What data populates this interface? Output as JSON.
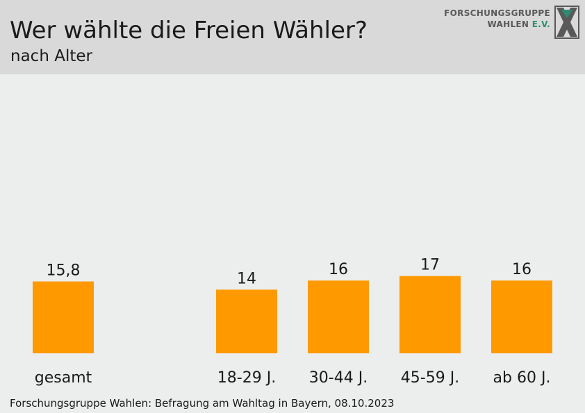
{
  "header": {
    "title": "Wer wählte die Freien Wähler?",
    "subtitle": "nach Alter"
  },
  "logo": {
    "line1": "FORSCHUNGSGRUPPE",
    "line2a": "WAHLEN",
    "line2b": "E.V."
  },
  "footer": {
    "source": "Forschungsgruppe Wahlen: Befragung am Wahltag in Bayern, 08.10.2023"
  },
  "colors": {
    "bar": "#ff9900",
    "header_bg": "#d9d9d9",
    "page_bg": "#ebeeed",
    "logo_accent": "#2e8b72"
  },
  "chart_data": {
    "type": "bar",
    "title": "Wer wählte die Freien Wähler?",
    "subtitle": "nach Alter",
    "categories": [
      "gesamt",
      "18-29 J.",
      "30-44 J.",
      "45-59 J.",
      "ab 60 J."
    ],
    "values": [
      15.8,
      14,
      16,
      17,
      16
    ],
    "value_labels": [
      "15,8",
      "14",
      "16",
      "17",
      "16"
    ],
    "xlabel": "",
    "ylabel": "",
    "grid": false,
    "legend": "none"
  }
}
